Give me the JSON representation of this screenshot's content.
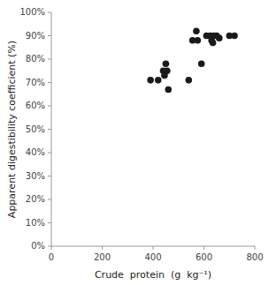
{
  "chart_data": {
    "type": "scatter",
    "x": [
      390,
      420,
      440,
      445,
      450,
      455,
      460,
      540,
      555,
      570,
      575,
      590,
      610,
      625,
      630,
      635,
      640,
      650,
      660,
      700,
      720
    ],
    "values": [
      71,
      71,
      75,
      73,
      78,
      75,
      67,
      71,
      88,
      92,
      88,
      78,
      90,
      90,
      88,
      87,
      90,
      90,
      89,
      90,
      90
    ],
    "xlabel": "Crude  protein  (g  kg⁻¹)",
    "ylabel": "Apparent digestibility coefficient (%)",
    "xlim": [
      0,
      800
    ],
    "ylim": [
      0,
      100
    ],
    "xticks": [
      0,
      200,
      400,
      600,
      800
    ],
    "yticks": [
      {
        "value": 0,
        "label": "0%"
      },
      {
        "value": 10,
        "label": "10%"
      },
      {
        "value": 20,
        "label": "20%"
      },
      {
        "value": 30,
        "label": "30%"
      },
      {
        "value": 40,
        "label": "40%"
      },
      {
        "value": 50,
        "label": "50%"
      },
      {
        "value": 60,
        "label": "60%"
      },
      {
        "value": 70,
        "label": "70%"
      },
      {
        "value": 80,
        "label": "80%"
      },
      {
        "value": 90,
        "label": "90%"
      },
      {
        "value": 100,
        "label": "100%"
      }
    ],
    "color": "#1a1a1a",
    "grid": false
  }
}
